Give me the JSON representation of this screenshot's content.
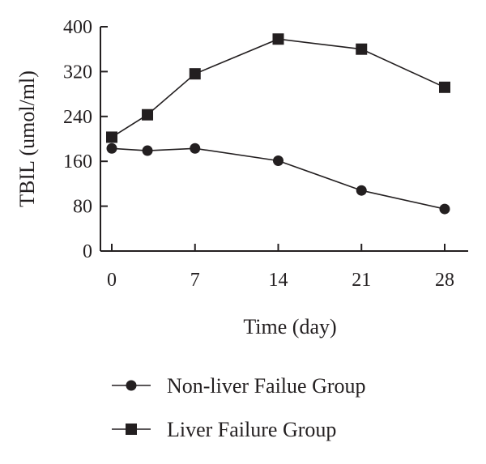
{
  "chart_data": {
    "type": "line",
    "title": "",
    "xlabel": "Time (day)",
    "ylabel": "TBIL (umol/ml)",
    "xlim": [
      0,
      30
    ],
    "ylim": [
      0,
      400
    ],
    "x_ticks": [
      0,
      7,
      14,
      21,
      28
    ],
    "y_ticks": [
      0,
      80,
      160,
      240,
      320,
      400
    ],
    "grid": false,
    "legend_position": "bottom",
    "series": [
      {
        "name": "Non-liver Failue Group",
        "marker": "circle",
        "color": "#231f20",
        "x": [
          0,
          3,
          7,
          14,
          21,
          28
        ],
        "y": [
          183,
          179,
          183,
          161,
          108,
          75
        ]
      },
      {
        "name": "Liver Failure Group",
        "marker": "square",
        "color": "#231f20",
        "x": [
          0,
          3,
          7,
          14,
          21,
          28
        ],
        "y": [
          203,
          243,
          316,
          378,
          360,
          292
        ]
      }
    ]
  }
}
